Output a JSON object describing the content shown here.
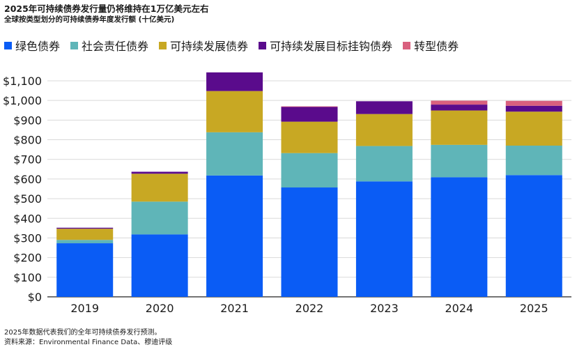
{
  "header": {
    "title": "2025年可持续债券发行量仍将维持在1万亿美元左右",
    "subtitle": "全球按类型划分的可持续债券年度发行额 (十亿美元)"
  },
  "footer": {
    "note": "2025年数据代表我们的全年可持续债券发行预测。",
    "source": "资料来源：Environmental Finance Data、穆迪评级"
  },
  "chart_data": {
    "type": "bar",
    "stacked": true,
    "title": "2025年可持续债券发行量仍将维持在1万亿美元左右",
    "subtitle": "全球按类型划分的可持续债券年度发行额 (十亿美元)",
    "categories": [
      "2019",
      "2020",
      "2021",
      "2022",
      "2023",
      "2024",
      "2025"
    ],
    "series": [
      {
        "name": "绿色债券",
        "color": "#0a5cf5",
        "values": [
          273,
          318,
          618,
          557,
          588,
          609,
          620
        ]
      },
      {
        "name": "社会责任债券",
        "color": "#5fb5b8",
        "values": [
          17,
          167,
          220,
          175,
          180,
          165,
          150
        ]
      },
      {
        "name": "可持续发展债券",
        "color": "#c8a823",
        "values": [
          57,
          142,
          210,
          160,
          163,
          175,
          173
        ]
      },
      {
        "name": "可持续发展目标挂钩债券",
        "color": "#5a0b8c",
        "values": [
          5,
          10,
          95,
          75,
          65,
          30,
          30
        ]
      },
      {
        "name": "转型债券",
        "color": "#d9607e",
        "values": [
          0,
          0,
          0,
          3,
          0,
          20,
          25
        ]
      }
    ],
    "y_ticks": [
      "$0",
      "$100",
      "$200",
      "$300",
      "$400",
      "$500",
      "$600",
      "$700",
      "$800",
      "$900",
      "$1,000",
      "$1,100"
    ],
    "ylim": [
      0,
      1100
    ],
    "grid": true,
    "legend_position": "top-left"
  }
}
